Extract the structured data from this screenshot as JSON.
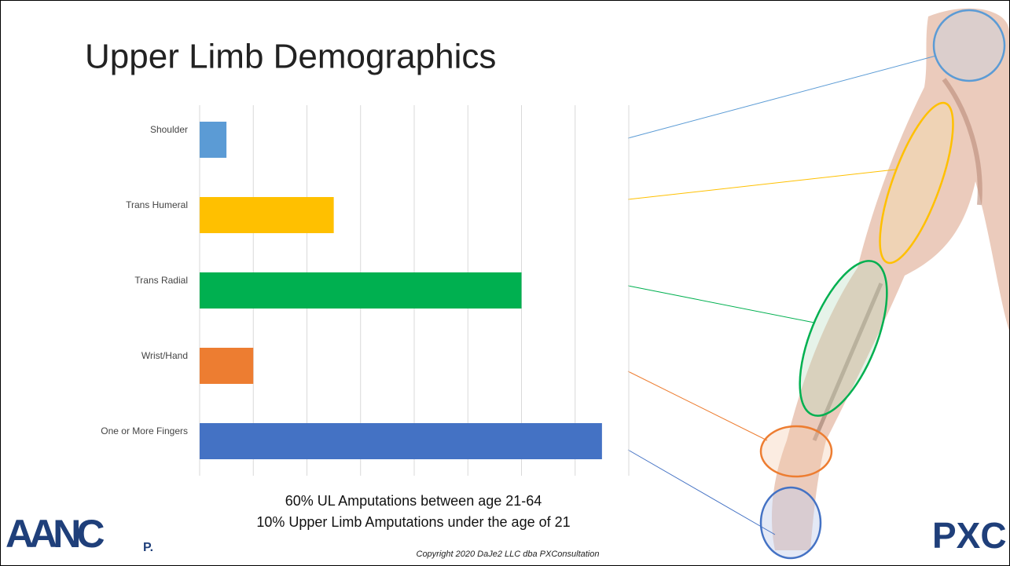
{
  "chart_data": {
    "type": "barh",
    "title": "Upper Limb Demographics",
    "categories": [
      "Shoulder",
      "Trans Humeral",
      "Trans Radial",
      "Wrist/Hand",
      "One or More Fingers"
    ],
    "values": [
      0.5,
      2.5,
      6,
      1,
      7.5
    ],
    "colors": [
      "#5b9bd5",
      "#ffc000",
      "#00b050",
      "#ed7d31",
      "#4472c4"
    ],
    "xlim": [
      0,
      8
    ],
    "xticks": [
      0,
      1,
      2,
      3,
      4,
      5,
      6,
      7,
      8
    ],
    "grid": true
  },
  "notes": [
    "60% UL Amputations between age 21-64",
    "10% Upper Limb Amputations under the age of 21"
  ],
  "copyright": "Copyright 2020 DaJe2 LLC dba PXConsultation",
  "logos": {
    "left": "AANC",
    "left_suffix": "P.",
    "right": "PXC"
  }
}
